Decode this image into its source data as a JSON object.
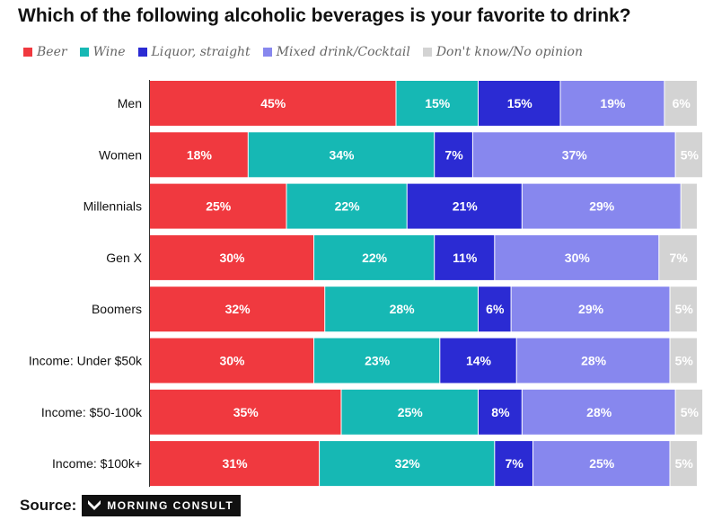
{
  "chart_data": {
    "type": "bar",
    "orientation": "horizontal",
    "stacked": true,
    "title": "Which of the following alcoholic beverages is your favorite to drink?",
    "categories": [
      "Men",
      "Women",
      "Millennials",
      "Gen X",
      "Boomers",
      "Income: Under $50k",
      "Income: $50-100k",
      "Income: $100k+"
    ],
    "series": [
      {
        "name": "Beer",
        "color": "#f0393f",
        "values": [
          45,
          18,
          25,
          30,
          32,
          30,
          35,
          31
        ],
        "labels": [
          "45%",
          "18%",
          "25%",
          "30%",
          "32%",
          "30%",
          "35%",
          "31%"
        ]
      },
      {
        "name": "Wine",
        "color": "#16b8b4",
        "values": [
          15,
          34,
          22,
          22,
          28,
          23,
          25,
          32
        ],
        "labels": [
          "15%",
          "34%",
          "22%",
          "22%",
          "28%",
          "23%",
          "25%",
          "32%"
        ]
      },
      {
        "name": "Liquor, straight",
        "color": "#2b2bd3",
        "values": [
          15,
          7,
          21,
          11,
          6,
          14,
          8,
          7
        ],
        "labels": [
          "15%",
          "7%",
          "21%",
          "11%",
          "6%",
          "14%",
          "8%",
          "7%"
        ]
      },
      {
        "name": "Mixed drink/Cocktail",
        "color": "#8787ee",
        "values": [
          19,
          37,
          29,
          30,
          29,
          28,
          28,
          25
        ],
        "labels": [
          "19%",
          "37%",
          "29%",
          "30%",
          "29%",
          "28%",
          "28%",
          "25%"
        ]
      },
      {
        "name": "Don't know/No opinion",
        "color": "#d3d3d3",
        "values": [
          6,
          5,
          3,
          7,
          5,
          5,
          5,
          5
        ],
        "labels": [
          "6%",
          "5%",
          "",
          "7%",
          "5%",
          "5%",
          "5%",
          "5%"
        ]
      }
    ],
    "xlim": [
      0,
      100
    ],
    "legend": "top",
    "grid": false
  },
  "source": {
    "label": "Source:",
    "brand": "MORNING CONSULT"
  }
}
